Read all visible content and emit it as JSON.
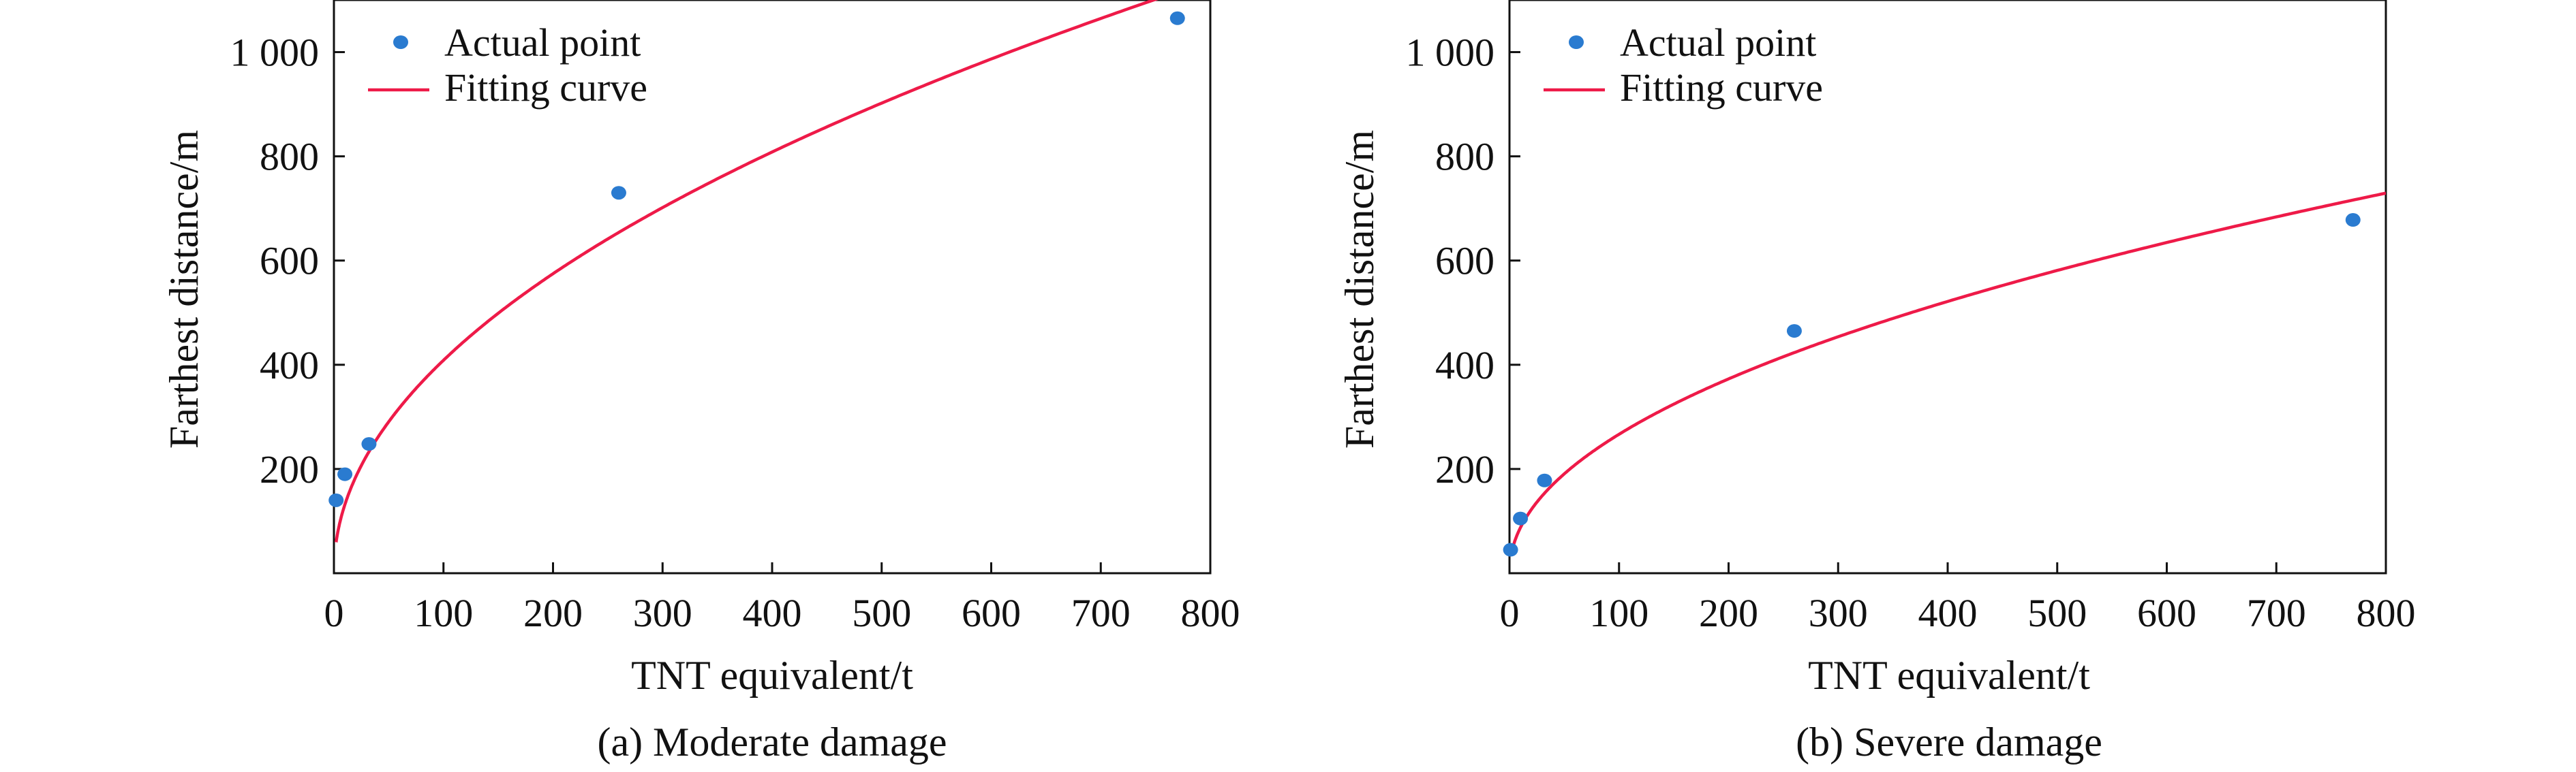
{
  "figure": {
    "colors": {
      "points": "#2a7bd0",
      "curve": "#ee1a48",
      "axis": "#111111"
    }
  },
  "chart_data": [
    {
      "type": "scatter",
      "caption": "(a) Moderate damage",
      "xlabel": "TNT equivalent/t",
      "ylabel": "Farthest distance/m",
      "xlim": [
        0,
        800
      ],
      "ylim": [
        0,
        1100
      ],
      "xticks": [
        0,
        100,
        200,
        300,
        400,
        500,
        600,
        700,
        800
      ],
      "xtick_labels": [
        "0",
        "100",
        "200",
        "300",
        "400",
        "500",
        "600",
        "700",
        "800"
      ],
      "yticks": [
        200,
        400,
        600,
        800,
        1000
      ],
      "ytick_labels": [
        "200",
        "400",
        "600",
        "800",
        "1 000"
      ],
      "legend_position": "upper-left",
      "legend": {
        "points": "Actual point",
        "curve": "Fitting curve"
      },
      "series": [
        {
          "name": "Actual point",
          "kind": "points",
          "x": [
            2,
            10,
            32,
            260,
            770
          ],
          "y": [
            140,
            190,
            248,
            730,
            1065
          ]
        },
        {
          "name": "Fitting curve",
          "kind": "curve",
          "model": "power",
          "a": 42.4,
          "b": 0.492
        }
      ]
    },
    {
      "type": "scatter",
      "caption": "(b) Severe damage",
      "xlabel": "TNT equivalent/t",
      "ylabel": "Farthest distance/m",
      "xlim": [
        0,
        800
      ],
      "ylim": [
        0,
        1100
      ],
      "xticks": [
        0,
        100,
        200,
        300,
        400,
        500,
        600,
        700,
        800
      ],
      "xtick_labels": [
        "0",
        "100",
        "200",
        "300",
        "400",
        "500",
        "600",
        "700",
        "800"
      ],
      "yticks": [
        200,
        400,
        600,
        800,
        1000
      ],
      "ytick_labels": [
        "200",
        "400",
        "600",
        "800",
        "1 000"
      ],
      "legend_position": "upper-left",
      "legend": {
        "points": "Actual point",
        "curve": "Fitting curve"
      },
      "series": [
        {
          "name": "Actual point",
          "kind": "points",
          "x": [
            1,
            10,
            32,
            260,
            770
          ],
          "y": [
            45,
            105,
            178,
            465,
            678
          ]
        },
        {
          "name": "Fitting curve",
          "kind": "curve",
          "model": "power",
          "a": 28.7,
          "b": 0.484
        }
      ]
    }
  ]
}
